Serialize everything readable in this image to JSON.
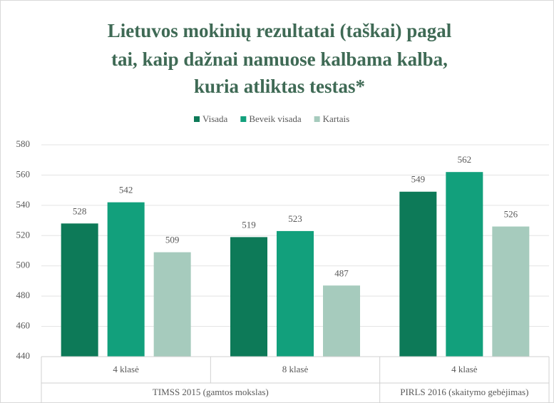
{
  "chart_data": {
    "type": "bar",
    "title": [
      "Lietuvos mokinių rezultatai (taškai) pagal",
      "tai, kaip dažnai namuose kalbama kalba,",
      "kuria atliktas testas*"
    ],
    "groups": [
      {
        "name": "TIMSS 2015 (gamtos mokslas)",
        "categories": [
          "4 klasė",
          "8 klasė"
        ]
      },
      {
        "name": "PIRLS 2016 (skaitymo gebėjimas)",
        "categories": [
          "4 klasė"
        ]
      }
    ],
    "series": [
      {
        "name": "Visada",
        "color": "#0d7a58",
        "values": [
          528,
          519,
          549
        ]
      },
      {
        "name": "Beveik visada",
        "color": "#12a07c",
        "values": [
          542,
          523,
          562
        ]
      },
      {
        "name": "Kartais",
        "color": "#a6cbbd",
        "values": [
          509,
          487,
          526
        ]
      }
    ],
    "ylim": [
      440,
      580
    ],
    "yticks": [
      440,
      460,
      480,
      500,
      520,
      540,
      560,
      580
    ],
    "grid": true
  }
}
